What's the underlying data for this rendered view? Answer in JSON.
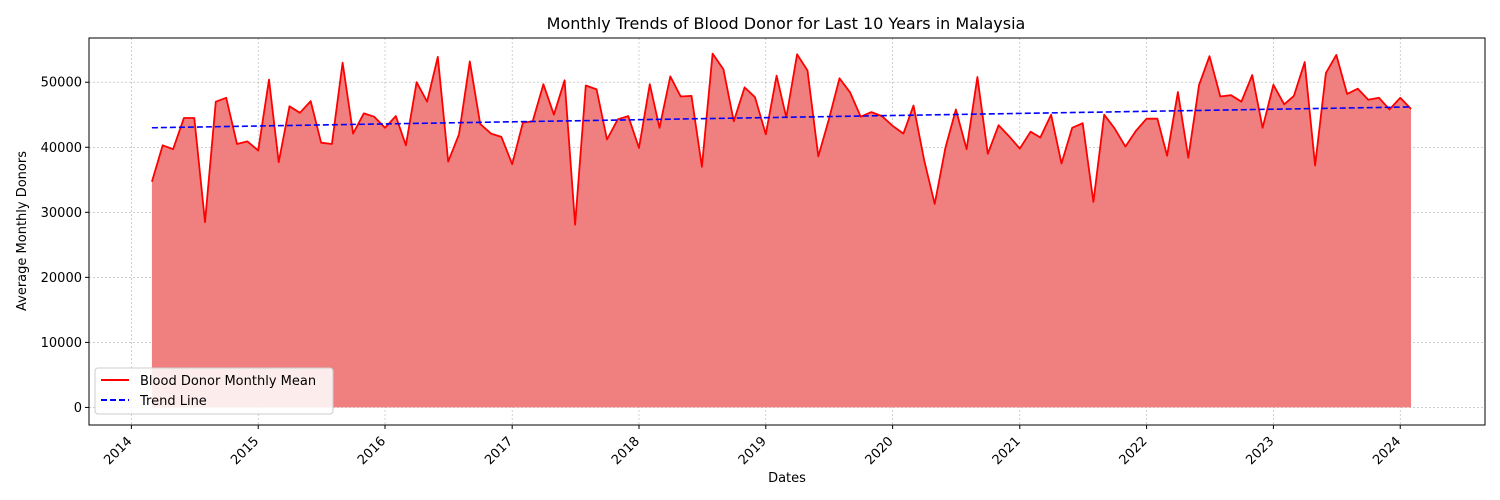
{
  "chart_data": {
    "type": "area",
    "title": "Monthly Trends of Blood Donor for Last 10 Years in Malaysia",
    "xlabel": "Dates",
    "ylabel": "Average Monthly Donors",
    "x_start": "2014-03",
    "x_end": "2024-02",
    "xlim": [
      "2013-09-01",
      "2024-09-01"
    ],
    "ylim": [
      -2700,
      56800
    ],
    "xticks": [
      "2014",
      "2015",
      "2016",
      "2017",
      "2018",
      "2019",
      "2020",
      "2021",
      "2022",
      "2023",
      "2024"
    ],
    "yticks": [
      0,
      10000,
      20000,
      30000,
      40000,
      50000
    ],
    "grid": true,
    "legend_position": "lower-left",
    "series": [
      {
        "name": "Blood Donor Monthly Mean",
        "color": "#ff0000",
        "fill_color": "#f08080",
        "style": "solid",
        "values": [
          34700,
          40300,
          39700,
          44500,
          44500,
          28500,
          47000,
          47600,
          40500,
          40900,
          39500,
          50400,
          37700,
          46300,
          45300,
          47100,
          40700,
          40500,
          53000,
          42100,
          45200,
          44700,
          43000,
          44800,
          40300,
          50000,
          47000,
          53900,
          37800,
          42000,
          53200,
          43600,
          42100,
          41600,
          37400,
          43800,
          44000,
          49700,
          45000,
          50300,
          28100,
          49500,
          48900,
          41200,
          44300,
          44800,
          39900,
          49700,
          43000,
          50900,
          47800,
          47900,
          37000,
          54400,
          52000,
          44000,
          49200,
          47700,
          42000,
          51000,
          44600,
          54300,
          51800,
          38600,
          44200,
          50600,
          48400,
          44700,
          45400,
          44800,
          43300,
          42100,
          46400,
          38000,
          31300,
          39900,
          45800,
          39700,
          50800,
          39000,
          43400,
          41700,
          39800,
          42400,
          41500,
          45000,
          37500,
          43000,
          43700,
          31600,
          45000,
          42900,
          40100,
          42500,
          44400,
          44400,
          38700,
          48500,
          38400,
          49600,
          54000,
          47800,
          48000,
          47000,
          51100,
          43000,
          49600,
          46600,
          47900,
          53100,
          37200,
          51400,
          54200,
          48200,
          49000,
          47300,
          47600,
          45800,
          47600,
          45900
        ]
      },
      {
        "name": "Trend Line",
        "color": "#0000ff",
        "style": "dashed",
        "values": [
          43000,
          46200
        ]
      }
    ]
  }
}
